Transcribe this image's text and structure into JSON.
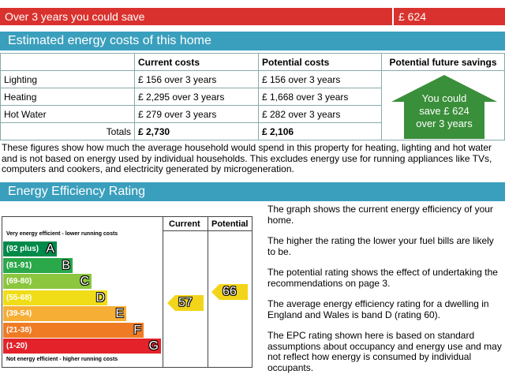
{
  "summary": {
    "label": "Over 3 years you could save",
    "value": "£ 624"
  },
  "costs_section": {
    "title": "Estimated energy costs of this home"
  },
  "costs_table": {
    "headers": [
      "",
      "Current costs",
      "Potential costs",
      "Potential future savings"
    ],
    "rows": [
      {
        "label": "Lighting",
        "current": "£ 156 over 3 years",
        "potential": "£ 156 over 3 years"
      },
      {
        "label": "Heating",
        "current": "£ 2,295 over 3 years",
        "potential": "£ 1,668 over 3 years"
      },
      {
        "label": "Hot Water",
        "current": "£ 279 over 3 years",
        "potential": "£ 282 over 3 years"
      }
    ],
    "totals": {
      "label": "Totals",
      "current": "£ 2,730",
      "potential": "£ 2,106"
    },
    "savings_box": [
      "You could",
      "save £ 624",
      "over 3 years"
    ],
    "savings_color": "#3a8f3a"
  },
  "explanation": "These figures show how much the average household would spend in this property for heating, lighting and hot water and is not based on energy used by individual households. This excludes energy use for running appliances like TVs, computers and cookers, and electricity generated by microgeneration.",
  "rating_section": {
    "title": "Energy Efficiency Rating"
  },
  "rating_chart": {
    "top_note": "Very energy efficient - lower running costs",
    "bottom_note": "Not energy efficient - higher running costs",
    "col_current": "Current",
    "col_potential": "Potential",
    "bands": [
      {
        "range": "(92 plus)",
        "letter": "A",
        "color": "#008a4a"
      },
      {
        "range": "(81-91)",
        "letter": "B",
        "color": "#2aa84a"
      },
      {
        "range": "(69-80)",
        "letter": "C",
        "color": "#8cc63f"
      },
      {
        "range": "(55-68)",
        "letter": "D",
        "color": "#f0dd18"
      },
      {
        "range": "(39-54)",
        "letter": "E",
        "color": "#f6ae35"
      },
      {
        "range": "(21-38)",
        "letter": "F",
        "color": "#ef7b24"
      },
      {
        "range": "(1-20)",
        "letter": "G",
        "color": "#e3222a"
      }
    ],
    "current_value": "57",
    "potential_value": "66",
    "arrow_color": "#f2d51a"
  },
  "notes": [
    "The graph shows the current energy efficiency of your home.",
    "The higher the rating the lower your fuel bills are likely to be.",
    "The potential rating shows the effect of undertaking the recommendations on page 3.",
    "The average energy efficiency rating for a dwelling in England and Wales is band D (rating 60).",
    "The EPC rating shown here is based on standard assumptions about occupancy and energy use and may not reflect how energy is consumed by individual occupants."
  ]
}
